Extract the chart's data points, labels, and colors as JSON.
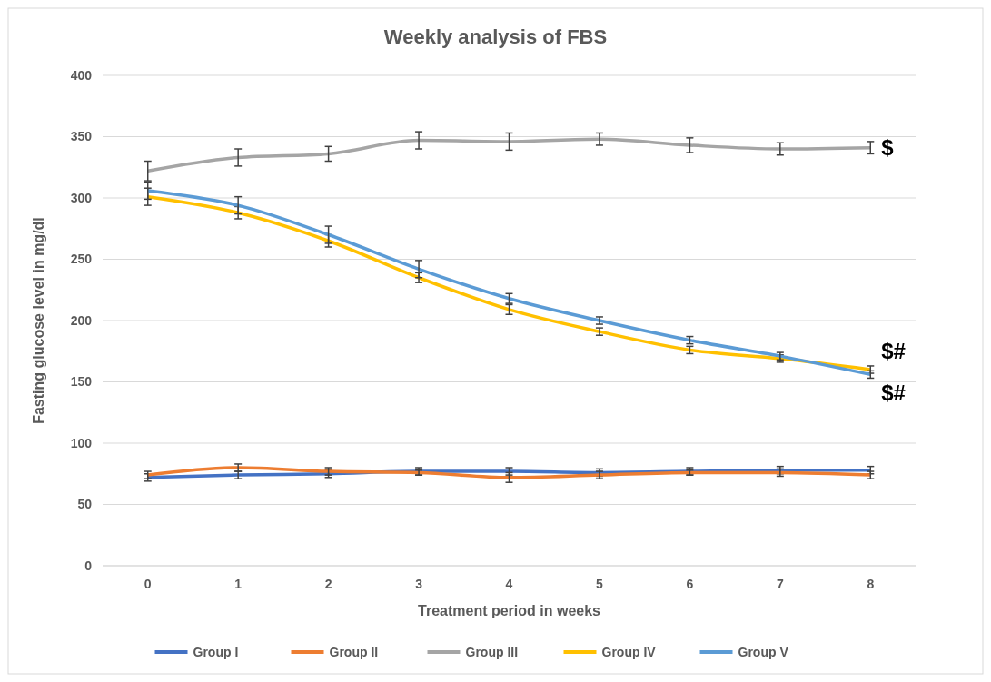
{
  "chart_data": {
    "type": "line",
    "title": "Weekly analysis of FBS",
    "xlabel": "Treatment period in weeks",
    "ylabel": "Fasting glucose level in mg/dl",
    "categories": [
      "0",
      "1",
      "2",
      "3",
      "4",
      "5",
      "6",
      "7",
      "8"
    ],
    "ylim": [
      0,
      400
    ],
    "yticks": [
      0,
      50,
      100,
      150,
      200,
      250,
      300,
      350,
      400
    ],
    "grid": "y",
    "legend": "bottom",
    "marker": "none",
    "line_style": "solid",
    "series": [
      {
        "name": "Group I",
        "color": "#4472c4",
        "values": [
          72,
          74,
          75,
          77,
          77,
          76,
          77,
          78,
          78
        ],
        "errors": [
          3,
          3,
          3,
          3,
          3,
          3,
          3,
          3,
          3
        ]
      },
      {
        "name": "Group II",
        "color": "#ed7d31",
        "values": [
          74,
          80,
          77,
          76,
          72,
          74,
          76,
          76,
          74
        ],
        "errors": [
          3,
          3,
          3,
          2,
          4,
          3,
          2,
          3,
          3
        ]
      },
      {
        "name": "Group III",
        "color": "#a5a5a5",
        "values": [
          322,
          333,
          336,
          347,
          346,
          348,
          343,
          340,
          341
        ],
        "errors": [
          8,
          7,
          6,
          7,
          7,
          5,
          6,
          5,
          5
        ]
      },
      {
        "name": "Group IV",
        "color": "#ffc000",
        "values": [
          301,
          288,
          265,
          235,
          209,
          191,
          176,
          169,
          160
        ],
        "errors": [
          7,
          5,
          5,
          4,
          4,
          3,
          3,
          3,
          3
        ]
      },
      {
        "name": "Group V",
        "color": "#5b9bd5",
        "values": [
          306,
          294,
          270,
          242,
          218,
          200,
          184,
          171,
          156
        ],
        "errors": [
          7,
          7,
          7,
          7,
          4,
          3,
          3,
          3,
          3
        ]
      }
    ],
    "annotations": [
      {
        "text": "$",
        "x": "8",
        "y": 341
      },
      {
        "text": "$#",
        "x": "8",
        "y": 160
      },
      {
        "text": "$#",
        "x": "8",
        "y": 156
      }
    ]
  }
}
